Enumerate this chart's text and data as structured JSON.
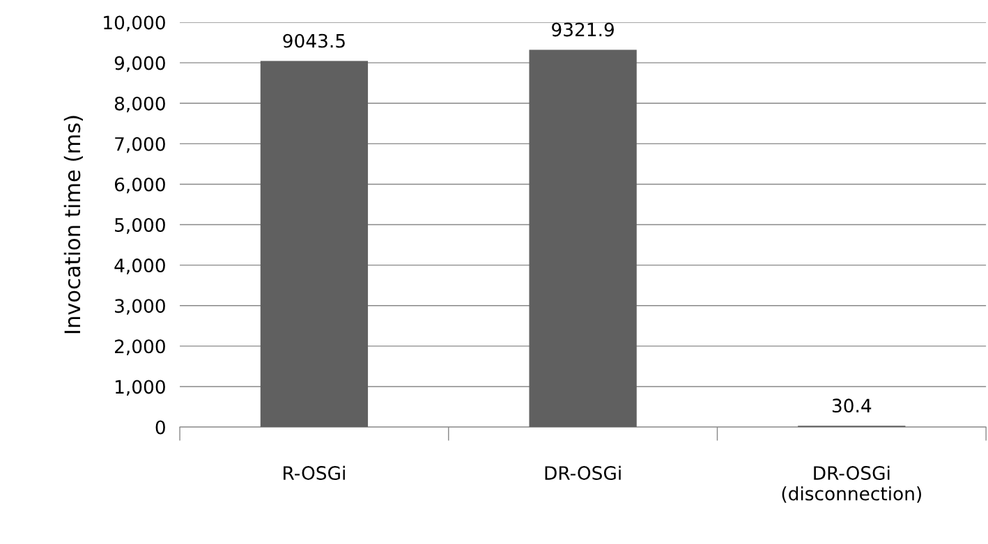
{
  "chart_data": {
    "type": "bar",
    "ylabel": "Invocation time (ms)",
    "categories": [
      "R-OSGi",
      "DR-OSGi",
      "DR-OSGi\n(disconnection)"
    ],
    "values": [
      9043.5,
      9321.9,
      30.4
    ],
    "color": "#606060",
    "ylim": [
      0,
      10000
    ],
    "yticks": [
      0,
      {
        "value": 1000,
        "label": "1,000"
      },
      {
        "value": 2000,
        "label": "2,000"
      },
      {
        "value": 3000,
        "label": "3,000"
      },
      {
        "value": 4000,
        "label": "4,000"
      },
      {
        "value": 5000,
        "label": "5,000"
      },
      {
        "value": 6000,
        "label": "6,000"
      },
      {
        "value": 7000,
        "label": "7,000"
      },
      {
        "value": 8000,
        "label": "8,000"
      },
      {
        "value": 9000,
        "label": "9,000"
      },
      {
        "value": 10000,
        "label": "10,000"
      }
    ],
    "grid": "y",
    "data_labels": true
  }
}
